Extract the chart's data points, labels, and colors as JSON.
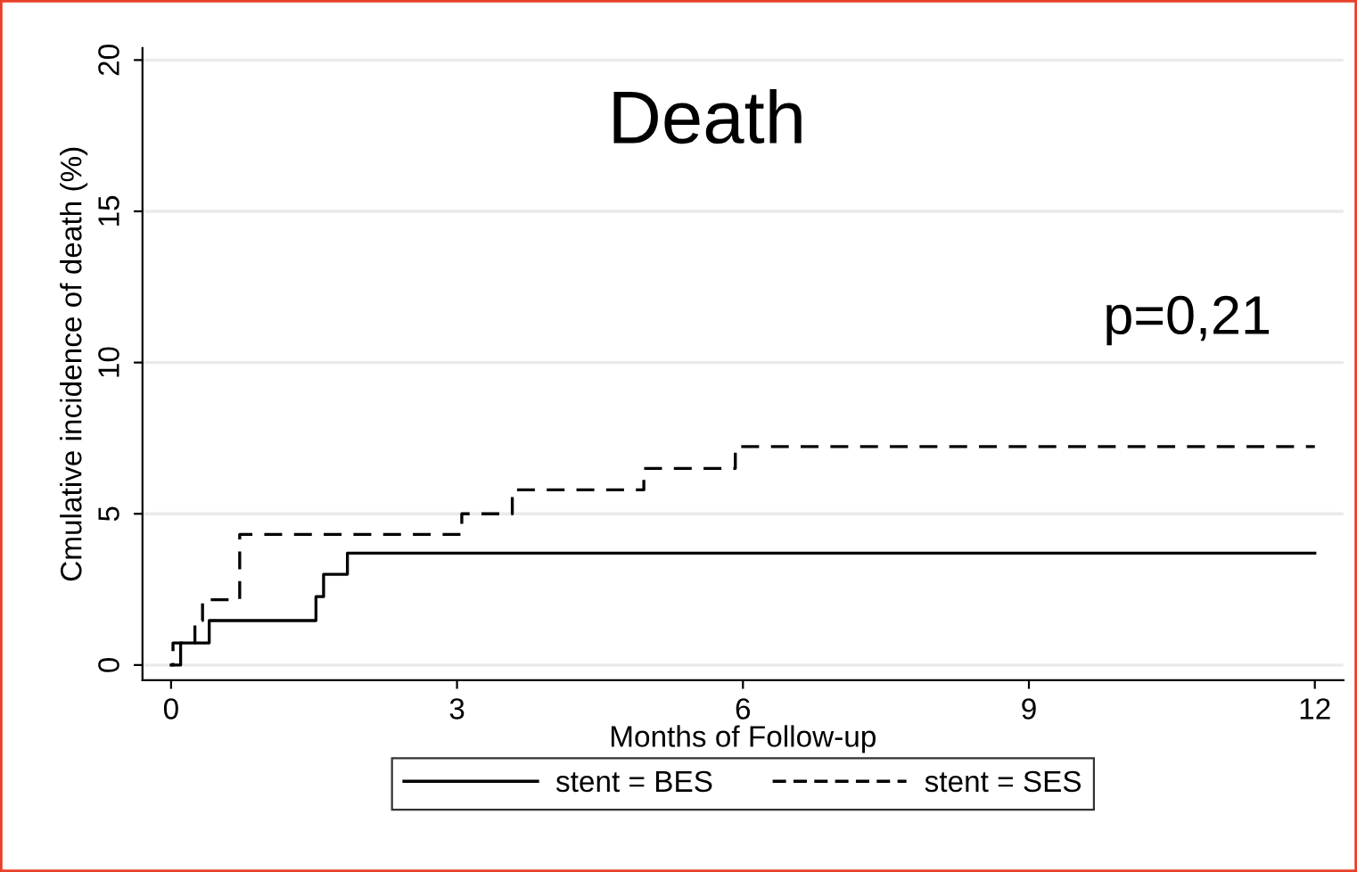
{
  "chart_data": {
    "type": "step",
    "title": "Death",
    "xlabel": "Months of Follow-up",
    "ylabel": "Cmulative incidence of death (%)",
    "annotations": [
      "p=0,21"
    ],
    "series": [
      {
        "name": "stent = BES",
        "color": "#000000",
        "line_style": "solid",
        "x": [
          0,
          0.1,
          0.4,
          1.52,
          1.6,
          1.85,
          12
        ],
        "values": [
          0,
          0.73,
          1.47,
          2.26,
          3.0,
          3.7,
          3.7
        ]
      },
      {
        "name": "stent = SES",
        "color": "#000000",
        "line_style": "dashed",
        "x": [
          0,
          0.02,
          0.25,
          0.33,
          0.72,
          3.05,
          3.58,
          4.96,
          5.92,
          12
        ],
        "values": [
          0,
          0.73,
          1.47,
          2.16,
          4.32,
          5.0,
          5.79,
          6.5,
          7.22,
          7.22
        ]
      }
    ],
    "xlim": [
      -0.3,
      12.3
    ],
    "ylim": [
      -0.5,
      20.4
    ],
    "xticks": [
      0,
      3,
      6,
      9,
      12
    ],
    "yticks": [
      0,
      5,
      10,
      15,
      20
    ],
    "grid": "y",
    "legend": "bottom",
    "marker": "none"
  }
}
